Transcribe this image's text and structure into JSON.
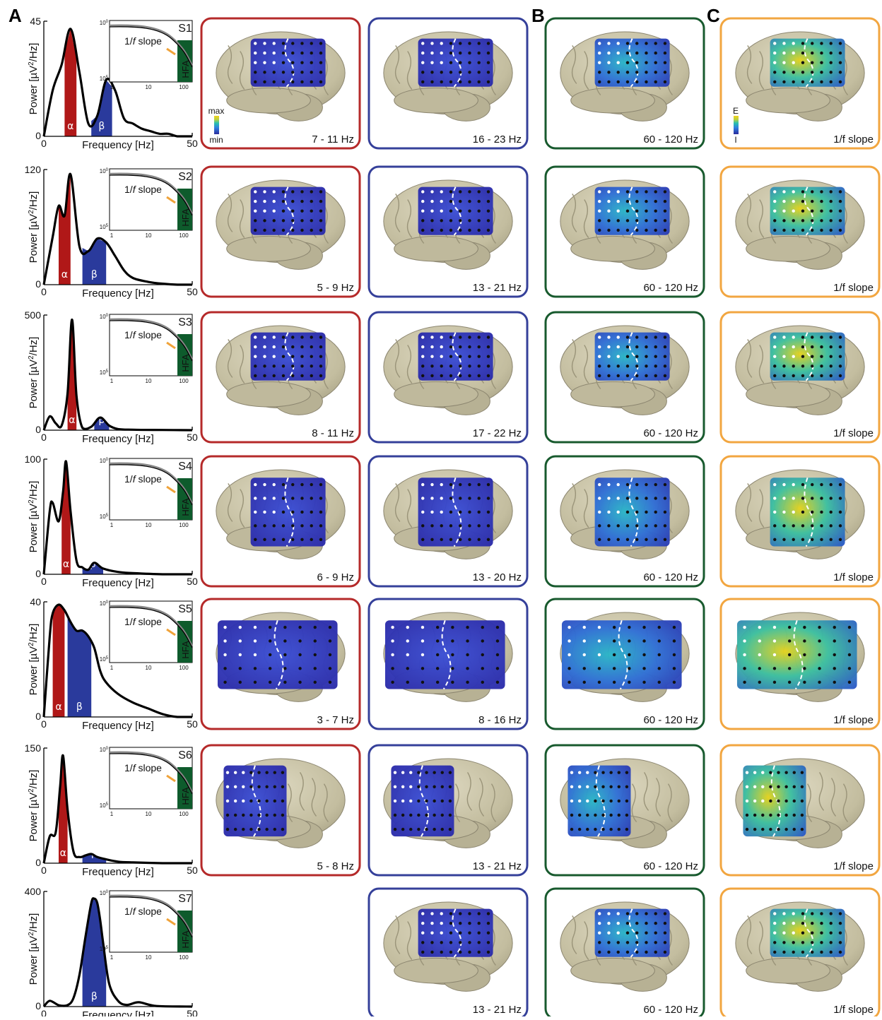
{
  "panel_labels": [
    "A",
    "B",
    "C"
  ],
  "colors": {
    "alpha": "#b01818",
    "beta": "#2a3a9c",
    "hfa": "#0e5b2c",
    "slope": "#f0a33a",
    "brain": "#c8c2a6",
    "frame_alpha": "#b52a2a",
    "frame_beta": "#35409a",
    "frame_hfa": "#185a2e",
    "frame_slope": "#f2a640"
  },
  "spectrum_axis": {
    "ylabel_prefix": "Power [µV",
    "ylabel_sup": "2",
    "ylabel_suffix": "/Hz]",
    "xlabel": "Frequency [Hz]",
    "xmin": "0",
    "xmax": "50"
  },
  "inset": {
    "slope_label_pre": "1/",
    "slope_label_f": "f",
    "slope_label_post": " slope",
    "hfa_label": "HFA",
    "x_ticks": [
      "1",
      "10",
      "100"
    ],
    "y_top_base": "10",
    "y_top_exp": "0",
    "y_bot_base": "10",
    "y_bot_exp": "5"
  },
  "alpha_symbol": "α",
  "beta_symbol": "β",
  "colorbar_alpha_beta": {
    "max": "max",
    "min": "min"
  },
  "colorbar_slope": {
    "top": "E",
    "bottom": "I"
  },
  "rows": [
    {
      "subject": "S1",
      "ymax": "45",
      "alpha_label": "7 - 11 Hz",
      "beta_label": "16 - 23 Hz",
      "hfa_label": "60 - 120 Hz",
      "slope_label": "1/f slope"
    },
    {
      "subject": "S2",
      "ymax": "120",
      "alpha_label": "5 - 9 Hz",
      "beta_label": "13 - 21 Hz",
      "hfa_label": "60 - 120 Hz",
      "slope_label": "1/f slope"
    },
    {
      "subject": "S3",
      "ymax": "500",
      "alpha_label": "8 - 11 Hz",
      "beta_label": "17 - 22 Hz",
      "hfa_label": "60 - 120 Hz",
      "slope_label": "1/f slope"
    },
    {
      "subject": "S4",
      "ymax": "100",
      "alpha_label": "6 - 9 Hz",
      "beta_label": "13 - 20 Hz",
      "hfa_label": "60 - 120 Hz",
      "slope_label": "1/f slope"
    },
    {
      "subject": "S5",
      "ymax": "40",
      "alpha_label": "3 - 7 Hz",
      "beta_label": "8 - 16 Hz",
      "hfa_label": "60 - 120 Hz",
      "slope_label": "1/f slope"
    },
    {
      "subject": "S6",
      "ymax": "150",
      "alpha_label": "5 - 8 Hz",
      "beta_label": "13 - 21 Hz",
      "hfa_label": "60 - 120 Hz",
      "slope_label": "1/f slope"
    },
    {
      "subject": "S7",
      "ymax": "400",
      "alpha_label": "",
      "beta_label": "13 - 21 Hz",
      "hfa_label": "60 - 120 Hz",
      "slope_label": "1/f slope"
    }
  ],
  "chart_data": [
    {
      "type": "line",
      "subject": "S1",
      "x": [
        0,
        3,
        6,
        9,
        12,
        15,
        18,
        21,
        24,
        27,
        30,
        33,
        36,
        39,
        42,
        45,
        48,
        50
      ],
      "y": [
        0,
        18,
        28,
        42,
        25,
        5,
        8,
        22,
        18,
        7,
        5,
        3,
        2,
        1,
        1,
        0,
        0,
        0
      ],
      "alpha_band": [
        7,
        11
      ],
      "beta_band": [
        16,
        23
      ],
      "xlim": [
        0,
        50
      ],
      "ylim": [
        0,
        45
      ]
    },
    {
      "type": "line",
      "subject": "S2",
      "x": [
        0,
        3,
        5,
        7,
        9,
        12,
        15,
        18,
        21,
        24,
        27,
        30,
        35,
        40,
        45,
        50
      ],
      "y": [
        0,
        50,
        82,
        72,
        115,
        40,
        35,
        48,
        44,
        30,
        15,
        7,
        3,
        1,
        0,
        0
      ],
      "alpha_band": [
        5,
        9
      ],
      "beta_band": [
        13,
        21
      ],
      "xlim": [
        0,
        50
      ],
      "ylim": [
        0,
        120
      ]
    },
    {
      "type": "line",
      "subject": "S3",
      "x": [
        0,
        2,
        4,
        6,
        8,
        9.5,
        11,
        13,
        16,
        19,
        22,
        25,
        30,
        40,
        50
      ],
      "y": [
        0,
        60,
        30,
        20,
        160,
        480,
        150,
        10,
        15,
        55,
        20,
        5,
        2,
        1,
        0
      ],
      "alpha_band": [
        8,
        11
      ],
      "beta_band": [
        17,
        22
      ],
      "xlim": [
        0,
        50
      ],
      "ylim": [
        0,
        500
      ]
    },
    {
      "type": "line",
      "subject": "S4",
      "x": [
        0,
        2,
        3,
        5,
        6.5,
        7.5,
        9,
        11,
        13,
        15,
        17,
        20,
        25,
        30,
        40,
        50
      ],
      "y": [
        0,
        55,
        62,
        46,
        72,
        98,
        55,
        12,
        6,
        4,
        10,
        5,
        2,
        1,
        0,
        0
      ],
      "alpha_band": [
        6,
        9
      ],
      "beta_band": [
        13,
        20
      ],
      "xlim": [
        0,
        50
      ],
      "ylim": [
        0,
        100
      ]
    },
    {
      "type": "line",
      "subject": "S5",
      "x": [
        0,
        2,
        3,
        5,
        7,
        9,
        11,
        13,
        15,
        17,
        19,
        21,
        25,
        30,
        35,
        40,
        45,
        50
      ],
      "y": [
        0,
        28,
        36,
        39,
        37,
        33,
        30,
        30,
        28,
        24,
        16,
        12,
        8,
        5,
        3,
        1,
        0,
        0
      ],
      "alpha_band": [
        3,
        7
      ],
      "beta_band": [
        8,
        16
      ],
      "xlim": [
        0,
        50
      ],
      "ylim": [
        0,
        40
      ]
    },
    {
      "type": "line",
      "subject": "S6",
      "x": [
        0,
        2,
        4,
        5.5,
        6.5,
        8,
        10,
        12,
        14,
        16,
        18,
        21,
        25,
        30,
        40,
        50
      ],
      "y": [
        0,
        35,
        40,
        100,
        140,
        70,
        15,
        8,
        10,
        12,
        8,
        5,
        2,
        1,
        0,
        0
      ],
      "alpha_band": [
        5,
        8
      ],
      "beta_band": [
        13,
        21
      ],
      "xlim": [
        0,
        50
      ],
      "ylim": [
        0,
        150
      ]
    },
    {
      "type": "line",
      "subject": "S7",
      "x": [
        0,
        2,
        5,
        8,
        10,
        12,
        14,
        16,
        17,
        18,
        19,
        20,
        22,
        25,
        28,
        32,
        38,
        50
      ],
      "y": [
        0,
        20,
        5,
        5,
        30,
        110,
        240,
        360,
        375,
        360,
        300,
        220,
        80,
        20,
        6,
        15,
        2,
        0
      ],
      "beta_band": [
        13,
        21
      ],
      "xlim": [
        0,
        50
      ],
      "ylim": [
        0,
        400
      ]
    }
  ]
}
